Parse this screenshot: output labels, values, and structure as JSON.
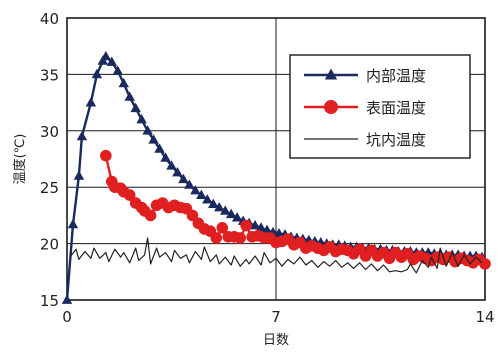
{
  "chart_data": {
    "type": "line",
    "title": "",
    "xlabel": "日数",
    "ylabel": "温度(℃)",
    "xlim": [
      0,
      14
    ],
    "ylim": [
      15,
      40
    ],
    "x_ticks": [
      "0",
      "7",
      "14"
    ],
    "y_ticks": [
      "15",
      "20",
      "25",
      "30",
      "35",
      "40"
    ],
    "grid": true,
    "legend_position": "top-right",
    "series": [
      {
        "name": "内部温度",
        "color": "#1b2a5e",
        "marker": "triangle",
        "points": [
          [
            0.0,
            15.0
          ],
          [
            0.2,
            21.7
          ],
          [
            0.4,
            26.0
          ],
          [
            0.5,
            29.5
          ],
          [
            0.8,
            32.5
          ],
          [
            1.0,
            35.0
          ],
          [
            1.2,
            36.2
          ],
          [
            1.3,
            36.6
          ],
          [
            1.5,
            36.1
          ],
          [
            1.7,
            35.3
          ],
          [
            1.9,
            34.2
          ],
          [
            2.1,
            33.0
          ],
          [
            2.3,
            32.0
          ],
          [
            2.5,
            31.0
          ],
          [
            2.7,
            30.0
          ],
          [
            2.9,
            29.2
          ],
          [
            3.1,
            28.4
          ],
          [
            3.3,
            27.6
          ],
          [
            3.5,
            26.9
          ],
          [
            3.7,
            26.3
          ],
          [
            3.9,
            25.7
          ],
          [
            4.1,
            25.2
          ],
          [
            4.3,
            24.7
          ],
          [
            4.5,
            24.3
          ],
          [
            4.7,
            23.9
          ],
          [
            4.9,
            23.5
          ],
          [
            5.1,
            23.2
          ],
          [
            5.3,
            22.9
          ],
          [
            5.5,
            22.6
          ],
          [
            5.7,
            22.3
          ],
          [
            5.9,
            22.0
          ],
          [
            6.1,
            21.8
          ],
          [
            6.3,
            21.6
          ],
          [
            6.5,
            21.4
          ],
          [
            6.7,
            21.2
          ],
          [
            6.9,
            21.0
          ],
          [
            7.1,
            20.9
          ],
          [
            7.3,
            20.8
          ],
          [
            7.5,
            20.6
          ],
          [
            7.7,
            20.5
          ],
          [
            7.9,
            20.4
          ],
          [
            8.1,
            20.3
          ],
          [
            8.3,
            20.2
          ],
          [
            8.5,
            20.1
          ],
          [
            8.7,
            20.0
          ],
          [
            8.9,
            19.9
          ],
          [
            9.1,
            19.9
          ],
          [
            9.3,
            19.8
          ],
          [
            9.5,
            19.7
          ],
          [
            9.7,
            19.7
          ],
          [
            9.9,
            19.6
          ],
          [
            10.1,
            19.6
          ],
          [
            10.3,
            19.5
          ],
          [
            10.5,
            19.5
          ],
          [
            10.7,
            19.4
          ],
          [
            10.9,
            19.4
          ],
          [
            11.1,
            19.3
          ],
          [
            11.3,
            19.3
          ],
          [
            11.5,
            19.3
          ],
          [
            11.7,
            19.2
          ],
          [
            11.9,
            19.2
          ],
          [
            12.1,
            19.2
          ],
          [
            12.3,
            19.1
          ],
          [
            12.5,
            19.1
          ],
          [
            12.7,
            19.0
          ],
          [
            12.9,
            19.0
          ],
          [
            13.1,
            19.0
          ],
          [
            13.3,
            18.9
          ],
          [
            13.5,
            18.9
          ],
          [
            13.7,
            18.9
          ],
          [
            13.9,
            18.8
          ]
        ]
      },
      {
        "name": "表面温度",
        "color": "#e02020",
        "marker": "circle",
        "points": [
          [
            1.3,
            27.8
          ],
          [
            1.5,
            25.5
          ],
          [
            1.6,
            25.0
          ],
          [
            1.8,
            24.9
          ],
          [
            1.9,
            24.6
          ],
          [
            2.1,
            24.3
          ],
          [
            2.3,
            23.6
          ],
          [
            2.5,
            23.2
          ],
          [
            2.6,
            22.9
          ],
          [
            2.8,
            22.5
          ],
          [
            3.0,
            23.4
          ],
          [
            3.2,
            23.6
          ],
          [
            3.4,
            23.2
          ],
          [
            3.6,
            23.4
          ],
          [
            3.8,
            23.2
          ],
          [
            4.0,
            23.1
          ],
          [
            4.2,
            22.5
          ],
          [
            4.4,
            21.8
          ],
          [
            4.6,
            21.3
          ],
          [
            4.8,
            21.1
          ],
          [
            5.0,
            20.5
          ],
          [
            5.2,
            21.4
          ],
          [
            5.4,
            20.6
          ],
          [
            5.6,
            20.6
          ],
          [
            5.8,
            20.5
          ],
          [
            6.0,
            21.6
          ],
          [
            6.2,
            20.6
          ],
          [
            6.4,
            20.7
          ],
          [
            6.6,
            20.5
          ],
          [
            6.8,
            20.5
          ],
          [
            7.0,
            20.1
          ],
          [
            7.2,
            20.2
          ],
          [
            7.4,
            20.4
          ],
          [
            7.6,
            19.9
          ],
          [
            7.8,
            20.1
          ],
          [
            8.0,
            19.6
          ],
          [
            8.2,
            19.8
          ],
          [
            8.4,
            19.6
          ],
          [
            8.6,
            19.4
          ],
          [
            8.8,
            19.7
          ],
          [
            9.0,
            19.3
          ],
          [
            9.2,
            19.5
          ],
          [
            9.4,
            19.4
          ],
          [
            9.6,
            19.1
          ],
          [
            9.8,
            19.5
          ],
          [
            10.0,
            18.9
          ],
          [
            10.2,
            19.4
          ],
          [
            10.4,
            18.9
          ],
          [
            10.6,
            19.2
          ],
          [
            10.8,
            18.7
          ],
          [
            11.0,
            19.2
          ],
          [
            11.2,
            18.8
          ],
          [
            11.4,
            19.1
          ],
          [
            11.6,
            18.6
          ],
          [
            11.8,
            18.9
          ],
          [
            12.0,
            18.7
          ],
          [
            12.2,
            18.5
          ],
          [
            12.4,
            18.8
          ],
          [
            12.6,
            18.6
          ],
          [
            12.8,
            18.8
          ],
          [
            13.0,
            18.4
          ],
          [
            13.2,
            18.7
          ],
          [
            13.4,
            18.5
          ],
          [
            13.6,
            18.3
          ],
          [
            13.8,
            18.6
          ],
          [
            14.0,
            18.2
          ]
        ]
      },
      {
        "name": "坑内温度",
        "color": "#222222",
        "marker": "none",
        "points": [
          [
            0.1,
            18.8
          ],
          [
            0.3,
            19.5
          ],
          [
            0.4,
            18.6
          ],
          [
            0.6,
            19.3
          ],
          [
            0.8,
            18.7
          ],
          [
            0.9,
            19.6
          ],
          [
            1.1,
            18.7
          ],
          [
            1.3,
            19.2
          ],
          [
            1.4,
            18.4
          ],
          [
            1.6,
            19.5
          ],
          [
            1.8,
            18.8
          ],
          [
            1.9,
            19.2
          ],
          [
            2.1,
            18.3
          ],
          [
            2.3,
            19.6
          ],
          [
            2.4,
            18.5
          ],
          [
            2.6,
            19.0
          ],
          [
            2.7,
            20.5
          ],
          [
            2.8,
            18.2
          ],
          [
            3.0,
            19.6
          ],
          [
            3.1,
            18.8
          ],
          [
            3.3,
            19.2
          ],
          [
            3.5,
            18.4
          ],
          [
            3.6,
            19.4
          ],
          [
            3.8,
            18.7
          ],
          [
            4.0,
            19.0
          ],
          [
            4.1,
            18.3
          ],
          [
            4.3,
            19.3
          ],
          [
            4.5,
            18.6
          ],
          [
            4.6,
            19.7
          ],
          [
            4.8,
            18.4
          ],
          [
            5.0,
            19.0
          ],
          [
            5.1,
            18.2
          ],
          [
            5.3,
            18.8
          ],
          [
            5.5,
            18.1
          ],
          [
            5.6,
            18.9
          ],
          [
            5.8,
            18.0
          ],
          [
            6.0,
            18.6
          ],
          [
            6.1,
            18.2
          ],
          [
            6.3,
            18.9
          ],
          [
            6.5,
            18.1
          ],
          [
            6.6,
            19.2
          ],
          [
            6.8,
            18.3
          ],
          [
            7.0,
            18.7
          ],
          [
            7.2,
            18.0
          ],
          [
            7.4,
            18.6
          ],
          [
            7.6,
            18.2
          ],
          [
            7.8,
            18.8
          ],
          [
            8.0,
            18.1
          ],
          [
            8.2,
            18.5
          ],
          [
            8.4,
            17.9
          ],
          [
            8.6,
            18.4
          ],
          [
            8.8,
            18.0
          ],
          [
            9.0,
            18.5
          ],
          [
            9.2,
            17.9
          ],
          [
            9.4,
            18.3
          ],
          [
            9.6,
            17.8
          ],
          [
            9.8,
            18.3
          ],
          [
            10.0,
            17.7
          ],
          [
            10.2,
            18.2
          ],
          [
            10.4,
            17.6
          ],
          [
            10.6,
            18.1
          ],
          [
            10.8,
            17.5
          ],
          [
            11.0,
            17.6
          ],
          [
            11.2,
            17.5
          ],
          [
            11.4,
            17.7
          ],
          [
            11.5,
            18.2
          ],
          [
            11.7,
            17.4
          ],
          [
            11.9,
            18.5
          ],
          [
            12.1,
            17.9
          ],
          [
            12.2,
            18.8
          ],
          [
            12.4,
            17.8
          ],
          [
            12.5,
            19.6
          ],
          [
            12.7,
            18.0
          ],
          [
            12.9,
            19.2
          ],
          [
            13.1,
            18.0
          ],
          [
            13.3,
            19.0
          ],
          [
            13.5,
            18.2
          ],
          [
            13.7,
            18.8
          ],
          [
            13.9,
            18.3
          ]
        ]
      }
    ]
  }
}
